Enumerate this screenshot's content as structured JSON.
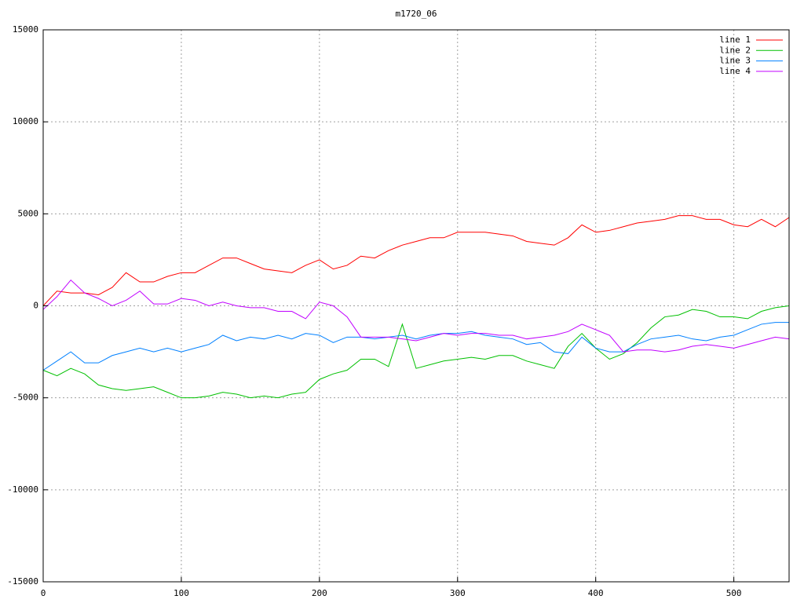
{
  "chart_data": {
    "type": "line",
    "title": "m1720_06",
    "x": [
      0,
      10,
      20,
      30,
      40,
      50,
      60,
      70,
      80,
      90,
      100,
      110,
      120,
      130,
      140,
      150,
      160,
      170,
      180,
      190,
      200,
      210,
      220,
      230,
      240,
      250,
      260,
      270,
      280,
      290,
      300,
      310,
      320,
      330,
      340,
      350,
      360,
      370,
      380,
      390,
      400,
      410,
      420,
      430,
      440,
      450,
      460,
      470,
      480,
      490,
      500,
      510,
      520,
      530,
      540
    ],
    "series": [
      {
        "name": "line 1",
        "color": "#ff0000",
        "values": [
          0,
          800,
          700,
          700,
          600,
          1000,
          1800,
          1300,
          1300,
          1600,
          1800,
          1800,
          2200,
          2600,
          2600,
          2300,
          2000,
          1900,
          1800,
          2200,
          2500,
          2000,
          2200,
          2700,
          2600,
          3000,
          3300,
          3500,
          3700,
          3700,
          4000,
          4000,
          4000,
          3900,
          3800,
          3500,
          3400,
          3300,
          3700,
          4400,
          4000,
          4100,
          4300,
          4500,
          4600,
          4700,
          4900,
          4900,
          4700,
          4700,
          4400,
          4300,
          4700,
          4300,
          4800
        ]
      },
      {
        "name": "line 2",
        "color": "#00c000",
        "values": [
          -3500,
          -3800,
          -3400,
          -3700,
          -4300,
          -4500,
          -4600,
          -4500,
          -4400,
          -4700,
          -5000,
          -5000,
          -4900,
          -4700,
          -4800,
          -5000,
          -4900,
          -5000,
          -4800,
          -4700,
          -4000,
          -3700,
          -3500,
          -2900,
          -2900,
          -3300,
          -1000,
          -3400,
          -3200,
          -3000,
          -2900,
          -2800,
          -2900,
          -2700,
          -2700,
          -3000,
          -3200,
          -3400,
          -2200,
          -1500,
          -2300,
          -2900,
          -2600,
          -2000,
          -1200,
          -600,
          -500,
          -200,
          -300,
          -600,
          -600,
          -700,
          -300,
          -100,
          0
        ]
      },
      {
        "name": "line 3",
        "color": "#0080ff",
        "values": [
          -3500,
          -3000,
          -2500,
          -3100,
          -3100,
          -2700,
          -2500,
          -2300,
          -2500,
          -2300,
          -2500,
          -2300,
          -2100,
          -1600,
          -1900,
          -1700,
          -1800,
          -1600,
          -1800,
          -1500,
          -1600,
          -2000,
          -1700,
          -1700,
          -1800,
          -1700,
          -1600,
          -1800,
          -1600,
          -1500,
          -1500,
          -1400,
          -1600,
          -1700,
          -1800,
          -2100,
          -2000,
          -2500,
          -2600,
          -1700,
          -2300,
          -2500,
          -2500,
          -2100,
          -1800,
          -1700,
          -1600,
          -1800,
          -1900,
          -1700,
          -1600,
          -1300,
          -1000,
          -900,
          -900
        ]
      },
      {
        "name": "line 4",
        "color": "#c000ff",
        "values": [
          -200,
          500,
          1400,
          700,
          400,
          0,
          300,
          800,
          100,
          100,
          400,
          300,
          0,
          200,
          0,
          -100,
          -100,
          -300,
          -300,
          -700,
          200,
          0,
          -600,
          -1700,
          -1700,
          -1700,
          -1800,
          -1900,
          -1700,
          -1500,
          -1600,
          -1500,
          -1500,
          -1600,
          -1600,
          -1800,
          -1700,
          -1600,
          -1400,
          -1000,
          -1300,
          -1600,
          -2500,
          -2400,
          -2400,
          -2500,
          -2400,
          -2200,
          -2100,
          -2200,
          -2300,
          -2100,
          -1900,
          -1700,
          -1800
        ]
      }
    ],
    "xlim": [
      0,
      540
    ],
    "ylim": [
      -15000,
      15000
    ],
    "xticks": [
      0,
      100,
      200,
      300,
      400,
      500
    ],
    "yticks": [
      -15000,
      -10000,
      -5000,
      0,
      5000,
      10000,
      15000
    ],
    "grid": true,
    "legend": "top-right"
  }
}
